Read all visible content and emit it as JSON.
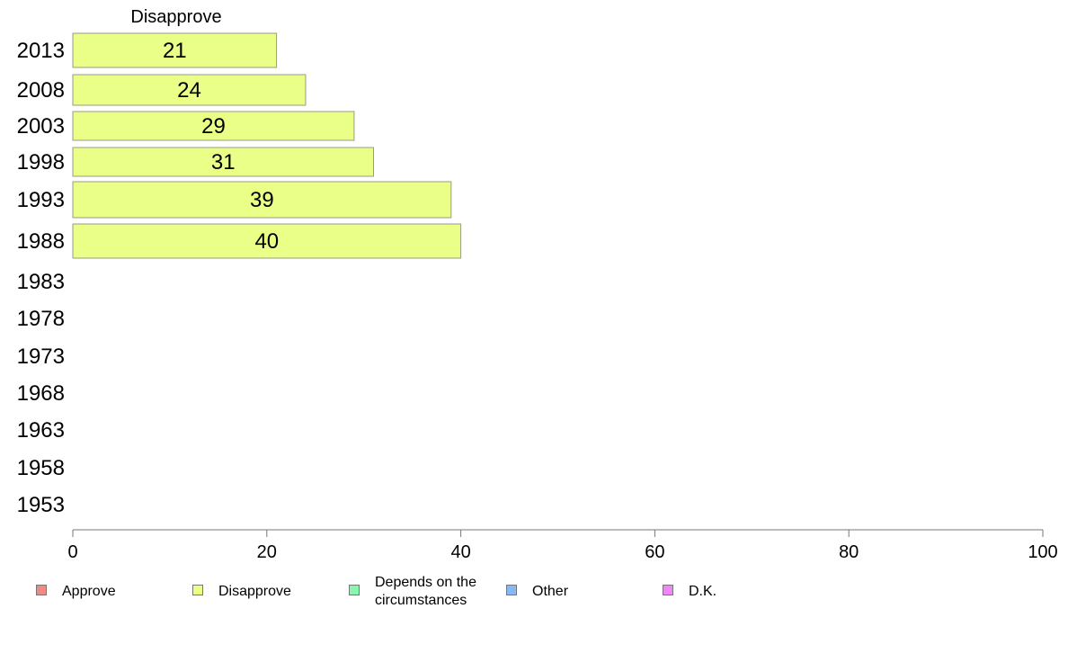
{
  "chart_data": {
    "type": "bar",
    "orientation": "horizontal",
    "panel_title": "Disapprove",
    "categories": [
      "2013",
      "2008",
      "2003",
      "1998",
      "1993",
      "1988",
      "1983",
      "1978",
      "1973",
      "1968",
      "1963",
      "1958",
      "1953"
    ],
    "series": [
      {
        "name": "Disapprove",
        "color": "#eaff88",
        "values": [
          21,
          24,
          29,
          31,
          39,
          40,
          null,
          null,
          null,
          null,
          null,
          null,
          null
        ],
        "labels": [
          "21",
          "24",
          "29",
          "31",
          "39",
          "40",
          "",
          "",
          "",
          "",
          "",
          "",
          ""
        ]
      }
    ],
    "xlim": [
      0,
      100
    ],
    "xticks": [
      "0",
      "20",
      "40",
      "60",
      "80",
      "100"
    ],
    "grid": false,
    "legend_position": "bottom"
  },
  "legend": [
    {
      "label": "Approve",
      "color": "#f08a84"
    },
    {
      "label": "Disapprove",
      "color": "#eaff88"
    },
    {
      "label": "Depends on the circumstances",
      "color": "#88f5b0"
    },
    {
      "label": "Other",
      "color": "#88b8f5"
    },
    {
      "label": "D.K.",
      "color": "#ee88f5"
    }
  ]
}
